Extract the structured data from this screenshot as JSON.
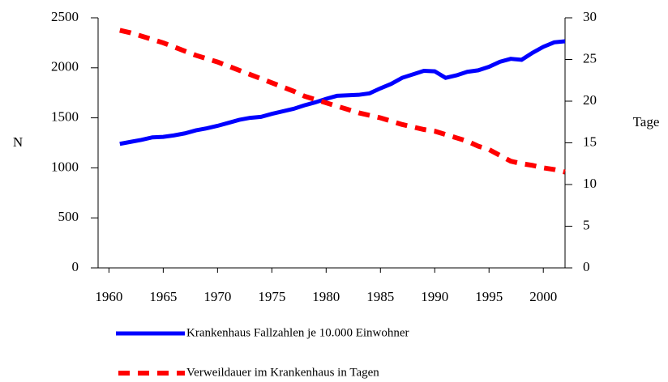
{
  "chart_data": {
    "type": "line",
    "x": [
      1961,
      1962,
      1963,
      1964,
      1965,
      1966,
      1967,
      1968,
      1969,
      1970,
      1971,
      1972,
      1973,
      1974,
      1975,
      1976,
      1977,
      1978,
      1979,
      1980,
      1981,
      1982,
      1983,
      1984,
      1985,
      1986,
      1987,
      1988,
      1989,
      1990,
      1991,
      1992,
      1993,
      1994,
      1995,
      1996,
      1997,
      1998,
      1999,
      2000,
      2001,
      2002
    ],
    "series": [
      {
        "name": "Krankenhaus Fallzahlen je 10.000 Einwohner",
        "color": "#0000ff",
        "axis": "y",
        "values": [
          1240,
          1260,
          1280,
          1305,
          1310,
          1325,
          1345,
          1375,
          1395,
          1420,
          1450,
          1480,
          1500,
          1510,
          1540,
          1565,
          1590,
          1625,
          1655,
          1690,
          1720,
          1725,
          1730,
          1745,
          1795,
          1840,
          1900,
          1935,
          1970,
          1965,
          1900,
          1925,
          1960,
          1975,
          2010,
          2060,
          2090,
          2080,
          2150,
          2210,
          2255,
          2265
        ]
      },
      {
        "name": "Verweildauer im Krankenhaus in Tagen",
        "color": "#ff0000",
        "axis": "y2",
        "dashed": true,
        "values": [
          28.5,
          28.2,
          27.8,
          27.4,
          27.0,
          26.5,
          26.0,
          25.5,
          25.1,
          24.7,
          24.2,
          23.7,
          23.2,
          22.7,
          22.2,
          21.7,
          21.2,
          20.6,
          20.2,
          19.8,
          19.4,
          19.0,
          18.6,
          18.3,
          18.0,
          17.6,
          17.2,
          16.9,
          16.6,
          16.4,
          16.0,
          15.6,
          15.2,
          14.6,
          14.2,
          13.5,
          12.8,
          12.5,
          12.3,
          12.0,
          11.8,
          11.5
        ]
      }
    ],
    "ylabel": "N",
    "y2label": "Tage",
    "xlim": [
      1959,
      2002
    ],
    "xticks": [
      1960,
      1965,
      1970,
      1975,
      1980,
      1985,
      1990,
      1995,
      2000
    ],
    "ylim": [
      0,
      2500
    ],
    "yticks": [
      0,
      500,
      1000,
      1500,
      2000,
      2500
    ],
    "y2lim": [
      0,
      30
    ],
    "y2ticks": [
      0,
      5,
      10,
      15,
      20,
      25,
      30
    ],
    "grid": false,
    "legend": "bottom"
  }
}
